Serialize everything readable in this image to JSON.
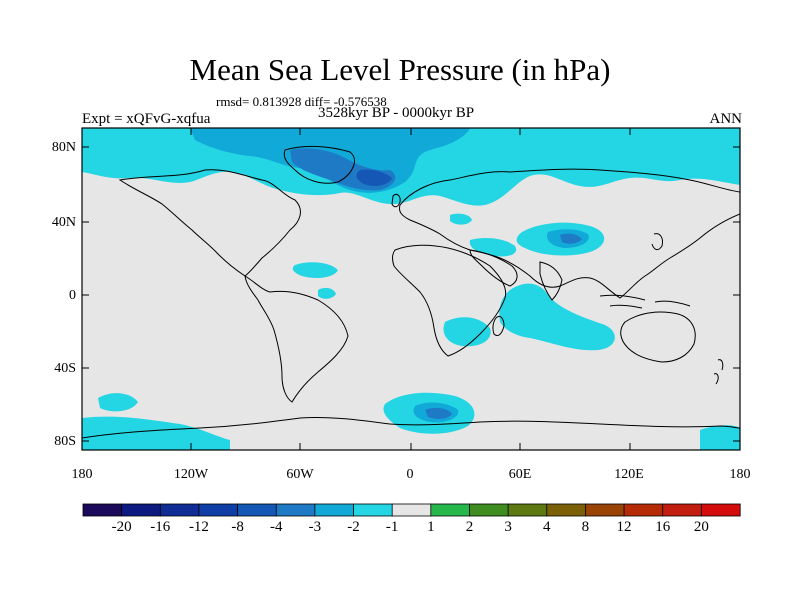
{
  "title": "Mean Sea Level Pressure (in hPa)",
  "stats": "rmsd= 0.813928 diff= -0.576538",
  "period": "3528kyr BP - 0000kyr BP",
  "experiment": "Expt = xQFvG-xqfua",
  "season": "ANN",
  "lat_labels": [
    "80N",
    "40N",
    "0",
    "40S",
    "80S"
  ],
  "lon_labels": [
    "180",
    "120W",
    "60W",
    "0",
    "60E",
    "120E",
    "180"
  ],
  "colorbar": {
    "labels": [
      "-20",
      "-16",
      "-12",
      "-8",
      "-4",
      "-3",
      "-2",
      "-1",
      "1",
      "2",
      "3",
      "4",
      "8",
      "12",
      "16",
      "20"
    ],
    "colors": [
      "#1b0a5a",
      "#0d1a80",
      "#102c95",
      "#0f3fa6",
      "#1457b5",
      "#1f7ac6",
      "#11a9d8",
      "#24d6e3",
      "#e6e6e6",
      "#27b84c",
      "#3f8c21",
      "#5d7a12",
      "#7c6008",
      "#994404",
      "#b42b06",
      "#c21d0e",
      "#d40c0c"
    ]
  },
  "colors": {
    "background": "#e6e6e6",
    "cyan": "#24d6e3",
    "light_blue": "#11a9d8",
    "mid_blue": "#1f7ac6",
    "dark_blue": "#1457b5",
    "coast": "#000000"
  }
}
